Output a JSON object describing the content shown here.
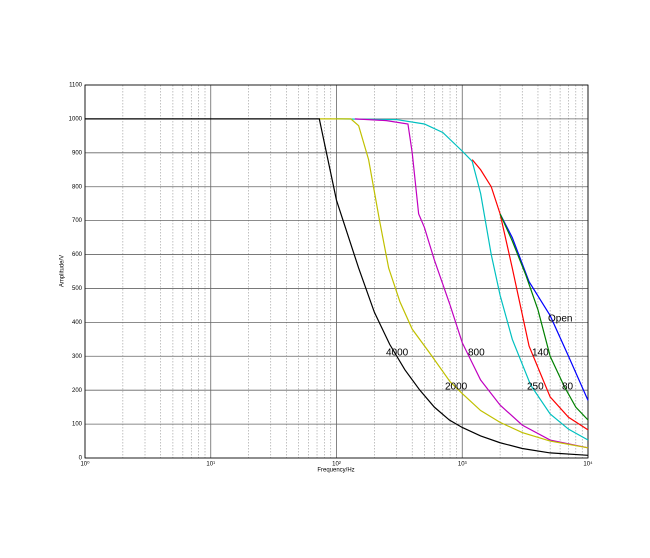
{
  "chart_data": {
    "type": "line",
    "xlabel": "Frequency/Hz",
    "ylabel": "Amplitude/V",
    "xscale": "log",
    "grid": true,
    "xlim": [
      1,
      10000
    ],
    "xticks": [
      {
        "value": 1,
        "label": "10⁰"
      },
      {
        "value": 10,
        "label": "10¹"
      },
      {
        "value": 100,
        "label": "10²"
      },
      {
        "value": 1000,
        "label": "10³"
      },
      {
        "value": 10000,
        "label": "10⁴"
      }
    ],
    "xminorticks": [
      2,
      3,
      4,
      5,
      6,
      7,
      8,
      9,
      20,
      30,
      40,
      50,
      60,
      70,
      80,
      90,
      200,
      300,
      400,
      500,
      600,
      700,
      800,
      900,
      2000,
      3000,
      4000,
      5000,
      6000,
      7000,
      8000,
      9000
    ],
    "ylim": [
      0,
      1100
    ],
    "yticks": [
      0,
      100,
      200,
      300,
      400,
      500,
      600,
      700,
      800,
      900,
      1000,
      1100
    ],
    "series": [
      {
        "name": "Open",
        "color": "#0000ff",
        "x": [
          2000,
          2500,
          3400,
          5000,
          7000,
          10000
        ],
        "values": [
          720,
          650,
          520,
          420,
          300,
          170
        ]
      },
      {
        "name": "140",
        "color": "#ff0000",
        "x": [
          1200,
          1400,
          1700,
          2000,
          2500,
          3400,
          5000,
          7000,
          10000
        ],
        "values": [
          880,
          850,
          800,
          720,
          560,
          330,
          180,
          120,
          83
        ]
      },
      {
        "name": "80",
        "color": "#008000",
        "x": [
          2000,
          2500,
          3200,
          4000,
          5000,
          6500,
          8000,
          10000
        ],
        "values": [
          720,
          640,
          540,
          437,
          300,
          210,
          150,
          112
        ]
      },
      {
        "name": "250",
        "color": "#00c0c0",
        "x": [
          100,
          300,
          500,
          700,
          1000,
          1200,
          1400,
          1700,
          2000,
          2500,
          3500,
          5000,
          7000,
          10000
        ],
        "values": [
          1000,
          998,
          985,
          960,
          905,
          875,
          780,
          600,
          480,
          350,
          215,
          130,
          85,
          53
        ]
      },
      {
        "name": "800",
        "color": "#c000c0",
        "x": [
          140,
          250,
          370,
          400,
          450,
          500,
          600,
          800,
          1000,
          1400,
          2000,
          3000,
          5000,
          10000
        ],
        "values": [
          1000,
          995,
          985,
          900,
          720,
          680,
          584,
          451,
          340,
          230,
          156,
          97,
          53,
          30
        ]
      },
      {
        "name": "2000",
        "color": "#c0c000",
        "x": [
          73,
          130,
          150,
          180,
          220,
          260,
          320,
          400,
          550,
          800,
          1000,
          1400,
          2000,
          3000,
          5000,
          10000
        ],
        "values": [
          1000,
          1000,
          980,
          880,
          700,
          560,
          460,
          380,
          310,
          225,
          190,
          140,
          105,
          75,
          50,
          30
        ]
      },
      {
        "name": "4000",
        "color": "#000000",
        "x": [
          1,
          73,
          100,
          150,
          200,
          265,
          350,
          460,
          600,
          790,
          1000,
          1400,
          2000,
          3000,
          5000,
          10000
        ],
        "values": [
          1000,
          1000,
          760,
          560,
          430,
          335,
          260,
          200,
          150,
          112,
          90,
          65,
          45,
          28,
          15,
          8
        ]
      }
    ]
  }
}
